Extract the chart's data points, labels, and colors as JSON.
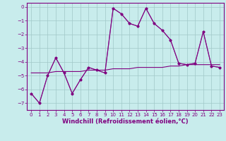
{
  "title": "",
  "xlabel": "Windchill (Refroidissement éolien,°C)",
  "bg_color": "#c8ecec",
  "grid_color": "#a0c8c8",
  "line_color": "#800080",
  "xlim": [
    -0.5,
    23.5
  ],
  "ylim": [
    -7.5,
    0.3
  ],
  "x_ticks": [
    0,
    1,
    2,
    3,
    4,
    5,
    6,
    7,
    8,
    9,
    10,
    11,
    12,
    13,
    14,
    15,
    16,
    17,
    18,
    19,
    20,
    21,
    22,
    23
  ],
  "y_ticks": [
    0,
    -1,
    -2,
    -3,
    -4,
    -5,
    -6,
    -7
  ],
  "series1_x": [
    0,
    1,
    2,
    3,
    4,
    5,
    6,
    7,
    8,
    9,
    10,
    11,
    12,
    13,
    14,
    15,
    16,
    17,
    18,
    19,
    20,
    21,
    22,
    23
  ],
  "series1_y": [
    -6.3,
    -7.0,
    -5.0,
    -3.7,
    -4.8,
    -6.3,
    -5.3,
    -4.4,
    -4.6,
    -4.8,
    -0.1,
    -0.5,
    -1.2,
    -1.4,
    -0.1,
    -1.2,
    -1.7,
    -2.4,
    -4.1,
    -4.2,
    -4.1,
    -1.8,
    -4.3,
    -4.4
  ],
  "series2_x": [
    0,
    1,
    2,
    3,
    4,
    5,
    6,
    7,
    8,
    9,
    10,
    11,
    12,
    13,
    14,
    15,
    16,
    17,
    18,
    19,
    20,
    21,
    22,
    23
  ],
  "series2_y": [
    -4.8,
    -4.8,
    -4.8,
    -4.7,
    -4.7,
    -4.7,
    -4.7,
    -4.6,
    -4.6,
    -4.6,
    -4.5,
    -4.5,
    -4.5,
    -4.4,
    -4.4,
    -4.4,
    -4.4,
    -4.3,
    -4.3,
    -4.2,
    -4.2,
    -4.2,
    -4.2,
    -4.2
  ],
  "series3_x": [
    0,
    1,
    2,
    3,
    4,
    5,
    6,
    7,
    8,
    9,
    10,
    11,
    12,
    13,
    14,
    15,
    16,
    17,
    18,
    19,
    20,
    21,
    22,
    23
  ],
  "series3_y": [
    -6.3,
    -7.0,
    -5.0,
    -3.7,
    -4.8,
    -6.3,
    -5.3,
    -4.4,
    -4.6,
    -4.8,
    -0.1,
    -0.5,
    -1.2,
    -1.4,
    -0.1,
    -1.2,
    -1.7,
    -2.4,
    -4.1,
    -4.2,
    -4.1,
    -1.8,
    -4.3,
    -4.4
  ],
  "xlabel_fontsize": 6,
  "tick_fontsize": 5,
  "marker_size": 2.5,
  "line_width": 0.8
}
